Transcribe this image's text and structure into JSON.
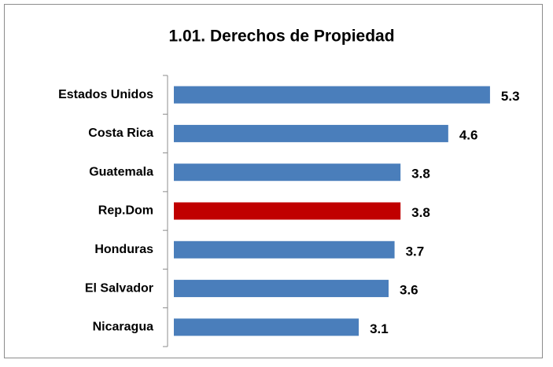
{
  "chart_data": {
    "type": "bar",
    "orientation": "horizontal",
    "title": "1.01. Derechos de Propiedad",
    "categories": [
      "Estados Unidos",
      "Costa Rica",
      "Guatemala",
      "Rep.Dom",
      "Honduras",
      "El Salvador",
      "Nicaragua"
    ],
    "values": [
      5.3,
      4.6,
      3.8,
      3.8,
      3.7,
      3.6,
      3.1
    ],
    "colors": [
      "#4a7ebb",
      "#4a7ebb",
      "#4a7ebb",
      "#c00000",
      "#4a7ebb",
      "#4a7ebb",
      "#4a7ebb"
    ],
    "xlim": [
      0,
      6
    ]
  }
}
